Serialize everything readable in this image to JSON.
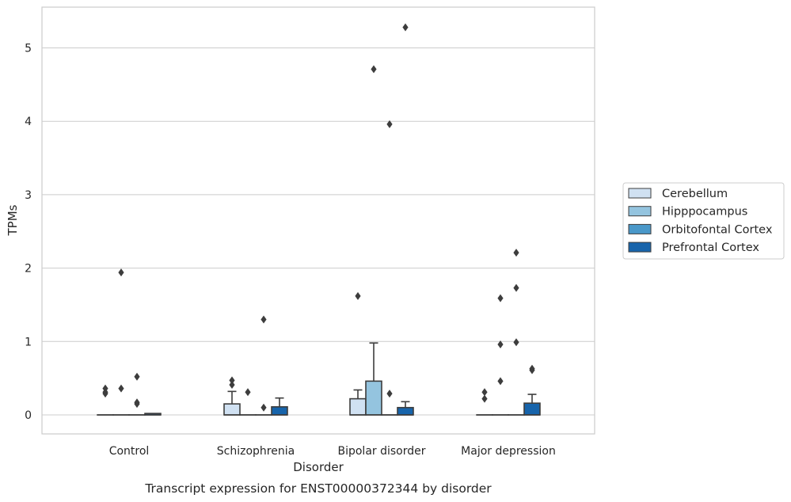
{
  "chart_data": {
    "type": "box",
    "title": "",
    "caption": "Transcript expression for ENST00000372344 by disorder",
    "xlabel": "Disorder",
    "ylabel": "TPMs",
    "ylim": [
      -0.26,
      5.56
    ],
    "yticks": [
      0,
      1,
      2,
      3,
      4,
      5
    ],
    "grid": "horizontal",
    "legend_position": "right",
    "categories": [
      "Control",
      "Schizophrenia",
      "Bipolar disorder",
      "Major depression"
    ],
    "series": [
      {
        "name": "Cerebellum",
        "color": "#d0e1f2",
        "boxes": [
          {
            "q1": 0,
            "median": 0,
            "q3": 0,
            "whisker_low": 0,
            "whisker_high": 0,
            "outliers": [
              0.29,
              0.31,
              0.36
            ]
          },
          {
            "q1": 0,
            "median": 0,
            "q3": 0.15,
            "whisker_low": 0,
            "whisker_high": 0.32,
            "outliers": [
              0.41,
              0.47
            ]
          },
          {
            "q1": 0,
            "median": 0,
            "q3": 0.22,
            "whisker_low": 0,
            "whisker_high": 0.34,
            "outliers": [
              1.62
            ]
          },
          {
            "q1": 0,
            "median": 0,
            "q3": 0,
            "whisker_low": 0,
            "whisker_high": 0,
            "outliers": [
              0.22,
              0.31
            ]
          }
        ]
      },
      {
        "name": "Hipppocampus",
        "color": "#94c4df",
        "boxes": [
          {
            "q1": 0,
            "median": 0,
            "q3": 0,
            "whisker_low": 0,
            "whisker_high": 0,
            "outliers": [
              0.36,
              1.94
            ]
          },
          {
            "q1": 0,
            "median": 0,
            "q3": 0,
            "whisker_low": 0,
            "whisker_high": 0,
            "outliers": [
              0.31
            ]
          },
          {
            "q1": 0,
            "median": 0,
            "q3": 0.46,
            "whisker_low": 0,
            "whisker_high": 0.98,
            "outliers": [
              4.71
            ]
          },
          {
            "q1": 0,
            "median": 0,
            "q3": 0,
            "whisker_low": 0,
            "whisker_high": 0,
            "outliers": [
              0.46,
              0.96,
              1.59
            ]
          }
        ]
      },
      {
        "name": "Orbitofontal Cortex",
        "color": "#4a98c9",
        "boxes": [
          {
            "q1": 0,
            "median": 0,
            "q3": 0,
            "whisker_low": 0,
            "whisker_high": 0,
            "outliers": [
              0.15,
              0.17,
              0.52
            ]
          },
          {
            "q1": 0,
            "median": 0,
            "q3": 0,
            "whisker_low": 0,
            "whisker_high": 0,
            "outliers": [
              0.1,
              1.3
            ]
          },
          {
            "q1": 0,
            "median": 0,
            "q3": 0,
            "whisker_low": 0,
            "whisker_high": 0,
            "outliers": [
              0.29,
              3.96
            ]
          },
          {
            "q1": 0,
            "median": 0,
            "q3": 0,
            "whisker_low": 0,
            "whisker_high": 0,
            "outliers": [
              0.99,
              1.73,
              2.21
            ]
          }
        ]
      },
      {
        "name": "Prefrontal Cortex",
        "color": "#1764ab",
        "boxes": [
          {
            "q1": 0,
            "median": 0,
            "q3": 0.02,
            "whisker_low": 0,
            "whisker_high": 0.02,
            "outliers": []
          },
          {
            "q1": 0,
            "median": 0,
            "q3": 0.11,
            "whisker_low": 0,
            "whisker_high": 0.23,
            "outliers": []
          },
          {
            "q1": 0,
            "median": 0,
            "q3": 0.1,
            "whisker_low": 0,
            "whisker_high": 0.18,
            "outliers": [
              5.28
            ]
          },
          {
            "q1": 0,
            "median": 0,
            "q3": 0.16,
            "whisker_low": 0,
            "whisker_high": 0.28,
            "outliers": [
              0.61,
              0.63
            ]
          }
        ]
      }
    ]
  }
}
